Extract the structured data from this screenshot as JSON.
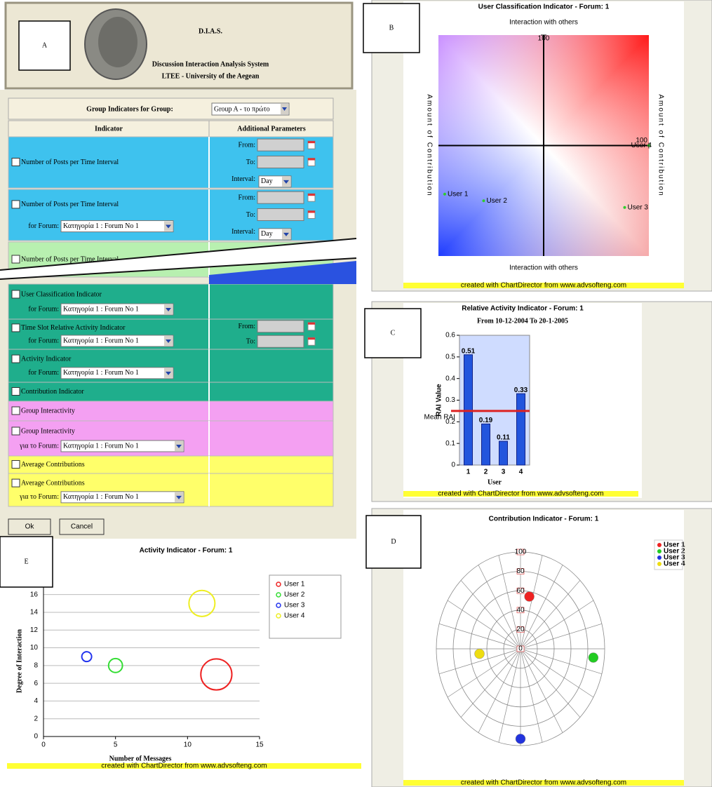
{
  "panel_labels": [
    "A",
    "B",
    "C",
    "D",
    "E"
  ],
  "header": {
    "title": "D.I.A.S.",
    "subtitle": "Discussion Interaction Analysis System",
    "org": "LTEE - University of the Aegean"
  },
  "form": {
    "title": "Group Indicators for Group:",
    "group": "Group A - το πρώτο",
    "columns": [
      "Indicator",
      "Additional Parameters"
    ],
    "rows": [
      {
        "label": "Number of Posts per Time Interval",
        "params": [
          "From:",
          "To:",
          "Interval:"
        ],
        "interval": "Day",
        "color": "#3ec2ee"
      },
      {
        "label": "Number of Posts per Time Interval",
        "forum_label": "for Forum:",
        "forum": "Κατηγορία 1 : Forum No 1",
        "params": [
          "From:",
          "To:",
          "Interval:"
        ],
        "interval": "Day",
        "color": "#3ec2ee"
      },
      {
        "label": "Number of Posts per Time Interval",
        "color": "#b8f0b0"
      },
      {
        "label": "User Classification Indicator",
        "forum_label": "for Forum:",
        "forum": "Κατηγορία 1 : Forum No 1",
        "color": "#1fae8c"
      },
      {
        "label": "Time Slot Relative Activity Indicator",
        "forum_label": "for Forum:",
        "forum": "Κατηγορία 1 : Forum No 1",
        "params": [
          "From:",
          "To:"
        ],
        "color": "#1fae8c"
      },
      {
        "label": "Activity Indicator",
        "forum_label": "for Forum:",
        "forum": "Κατηγορία 1 : Forum No 1",
        "color": "#1fae8c"
      },
      {
        "label": "Contribution Indicator",
        "color": "#1fae8c"
      },
      {
        "label": "Group Interactivity",
        "color": "#f4a0f2"
      },
      {
        "label": "Group Interactivity",
        "forum_label": "για το Forum:",
        "forum": "Κατηγορία 1 : Forum No 1",
        "color": "#f4a0f2"
      },
      {
        "label": "Average Contributions",
        "color": "#ffff6a"
      },
      {
        "label": "Average Contributions",
        "forum_label": "για το Forum:",
        "forum": "Κατηγορία 1 : Forum No 1",
        "color": "#ffff6a"
      }
    ],
    "buttons": [
      "Ok",
      "Cancel"
    ]
  },
  "chart_data": [
    {
      "type": "quadrant",
      "title": "User Classification Indicator - Forum: 1",
      "top_label": "Interaction with others",
      "bottom_label": "Interaction with others",
      "left_label": "Amount of Contribution",
      "right_label": "Amount of Contribution",
      "xlim": [
        -100,
        100
      ],
      "ylim": [
        -100,
        100
      ],
      "xticks": [
        100
      ],
      "yticks": [
        100
      ],
      "color": "#2ecc2e",
      "points": [
        {
          "label": "User 1",
          "x": -94,
          "y": -44
        },
        {
          "label": "User 2",
          "x": -57,
          "y": -50
        },
        {
          "label": "User 3",
          "x": 77,
          "y": -56
        },
        {
          "label": "User 4",
          "x": 100,
          "y": 0
        }
      ],
      "footer": "created with ChartDirector from www.advsofteng.com"
    },
    {
      "type": "bar",
      "title": "Relative Activity Indicator - Forum: 1",
      "subtitle": "From 10-12-2004 To 20-1-2005",
      "categories": [
        "1",
        "2",
        "3",
        "4"
      ],
      "values": [
        0.51,
        0.19,
        0.11,
        0.33
      ],
      "color": "#2255dd",
      "ylim": [
        0,
        0.6
      ],
      "yticks": [
        0,
        0.1,
        0.2,
        0.3,
        0.4,
        0.5,
        0.6
      ],
      "xlabel": "User",
      "ylabel": "RAI Value",
      "mean": 0.25,
      "mean_label": "Mean RAI",
      "mean_color": "#dd2222",
      "footer": "created with ChartDirector from www.advsofteng.com"
    },
    {
      "type": "polar",
      "title": "Contribution Indicator - Forum: 1",
      "rlim": [
        0,
        100
      ],
      "rticks": [
        0,
        20,
        40,
        60,
        80,
        100
      ],
      "series": [
        {
          "name": "User 1",
          "color": "#ee2222",
          "r": [
            55
          ],
          "angle": [
            11
          ]
        },
        {
          "name": "User 2",
          "color": "#22cc22",
          "r": [
            87
          ],
          "angle": [
            96
          ]
        },
        {
          "name": "User 3",
          "color": "#2233dd",
          "r": [
            93
          ],
          "angle": [
            180
          ]
        },
        {
          "name": "User 4",
          "color": "#eedd11",
          "r": [
            49
          ],
          "angle": [
            264
          ]
        }
      ],
      "footer": "created with ChartDirector from www.advsofteng.com"
    },
    {
      "type": "bubble",
      "title": "Activity Indicator - Forum: 1",
      "xlabel": "Number of Messages",
      "ylabel": "Degree of Interaction",
      "xlim": [
        0,
        15
      ],
      "xticks": [
        0,
        5,
        10,
        15
      ],
      "ylim": [
        0,
        17
      ],
      "yticks": [
        0,
        2,
        4,
        6,
        8,
        10,
        12,
        14,
        16
      ],
      "grid": true,
      "series": [
        {
          "name": "User 1",
          "color": "#ee2222",
          "x": [
            12
          ],
          "values": [
            7
          ],
          "sizes": [
            10
          ]
        },
        {
          "name": "User 2",
          "color": "#33dd33",
          "x": [
            5
          ],
          "values": [
            8
          ],
          "sizes": [
            2
          ]
        },
        {
          "name": "User 3",
          "color": "#2233ee",
          "x": [
            3
          ],
          "values": [
            9
          ],
          "sizes": [
            1
          ]
        },
        {
          "name": "User 4",
          "color": "#eeee22",
          "x": [
            11
          ],
          "values": [
            15
          ],
          "sizes": [
            7
          ]
        }
      ],
      "footer": "created with ChartDirector from www.advsofteng.com"
    }
  ]
}
